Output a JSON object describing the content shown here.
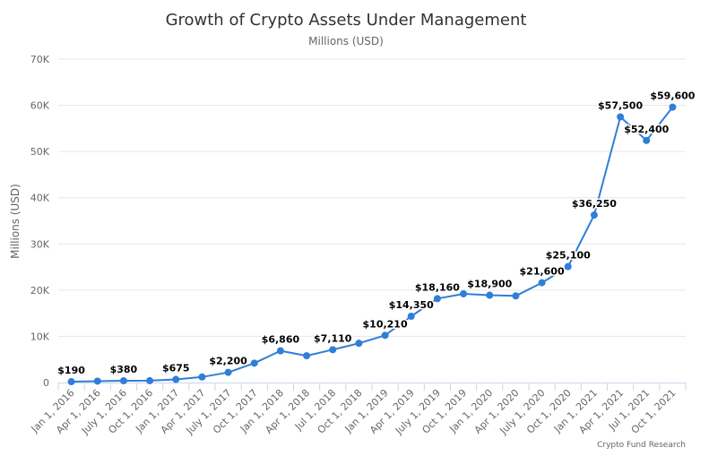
{
  "chart_data": {
    "type": "line",
    "title": "Growth of Crypto Assets Under Management",
    "subtitle": "Millions (USD)",
    "ylabel": "Millions (USD)",
    "xlabel": "",
    "ylim": [
      0,
      70000
    ],
    "yticks": [
      {
        "value": 0,
        "label": "0"
      },
      {
        "value": 10000,
        "label": "10K"
      },
      {
        "value": 20000,
        "label": "20K"
      },
      {
        "value": 30000,
        "label": "30K"
      },
      {
        "value": 40000,
        "label": "40K"
      },
      {
        "value": 50000,
        "label": "50K"
      },
      {
        "value": 60000,
        "label": "60K"
      },
      {
        "value": 70000,
        "label": "70K"
      }
    ],
    "grid": true,
    "legend": "none",
    "color": "#2f7ed8",
    "categories": [
      "Jan 1, 2016",
      "Apr 1, 2016",
      "July 1, 2016",
      "Oct 1, 2016",
      "Jan 1, 2017",
      "Apr 1, 2017",
      "July 1, 2017",
      "Oct 1, 2017",
      "Jan 1, 2018",
      "Apr 1, 2018",
      "Jul 1, 2018",
      "Oct 1, 2018",
      "Jan 1, 2019",
      "Apr 1, 2019",
      "July 1, 2019",
      "Oct 1, 2019",
      "Jan 1, 2020",
      "Apr 1, 2020",
      "July 1, 2020",
      "Oct 1, 2020",
      "Jan 1, 2021",
      "Apr 1, 2021",
      "Jul 1, 2021",
      "Oct 1, 2021"
    ],
    "values": [
      190,
      300,
      380,
      400,
      675,
      1200,
      2200,
      4200,
      6860,
      5800,
      7110,
      8500,
      10210,
      14350,
      18160,
      19200,
      18900,
      18750,
      21600,
      25100,
      36250,
      57500,
      52400,
      59600
    ],
    "data_labels": [
      "$190",
      "",
      "$380",
      "",
      "$675",
      "",
      "$2,200",
      "",
      "$6,860",
      "",
      "$7,110",
      "",
      "$10,210",
      "$14,350",
      "$18,160",
      "",
      "$18,900",
      "",
      "$21,600",
      "$25,100",
      "$36,250",
      "$57,500",
      "$52,400",
      "$59,600"
    ],
    "credit": "Crypto Fund Research"
  }
}
